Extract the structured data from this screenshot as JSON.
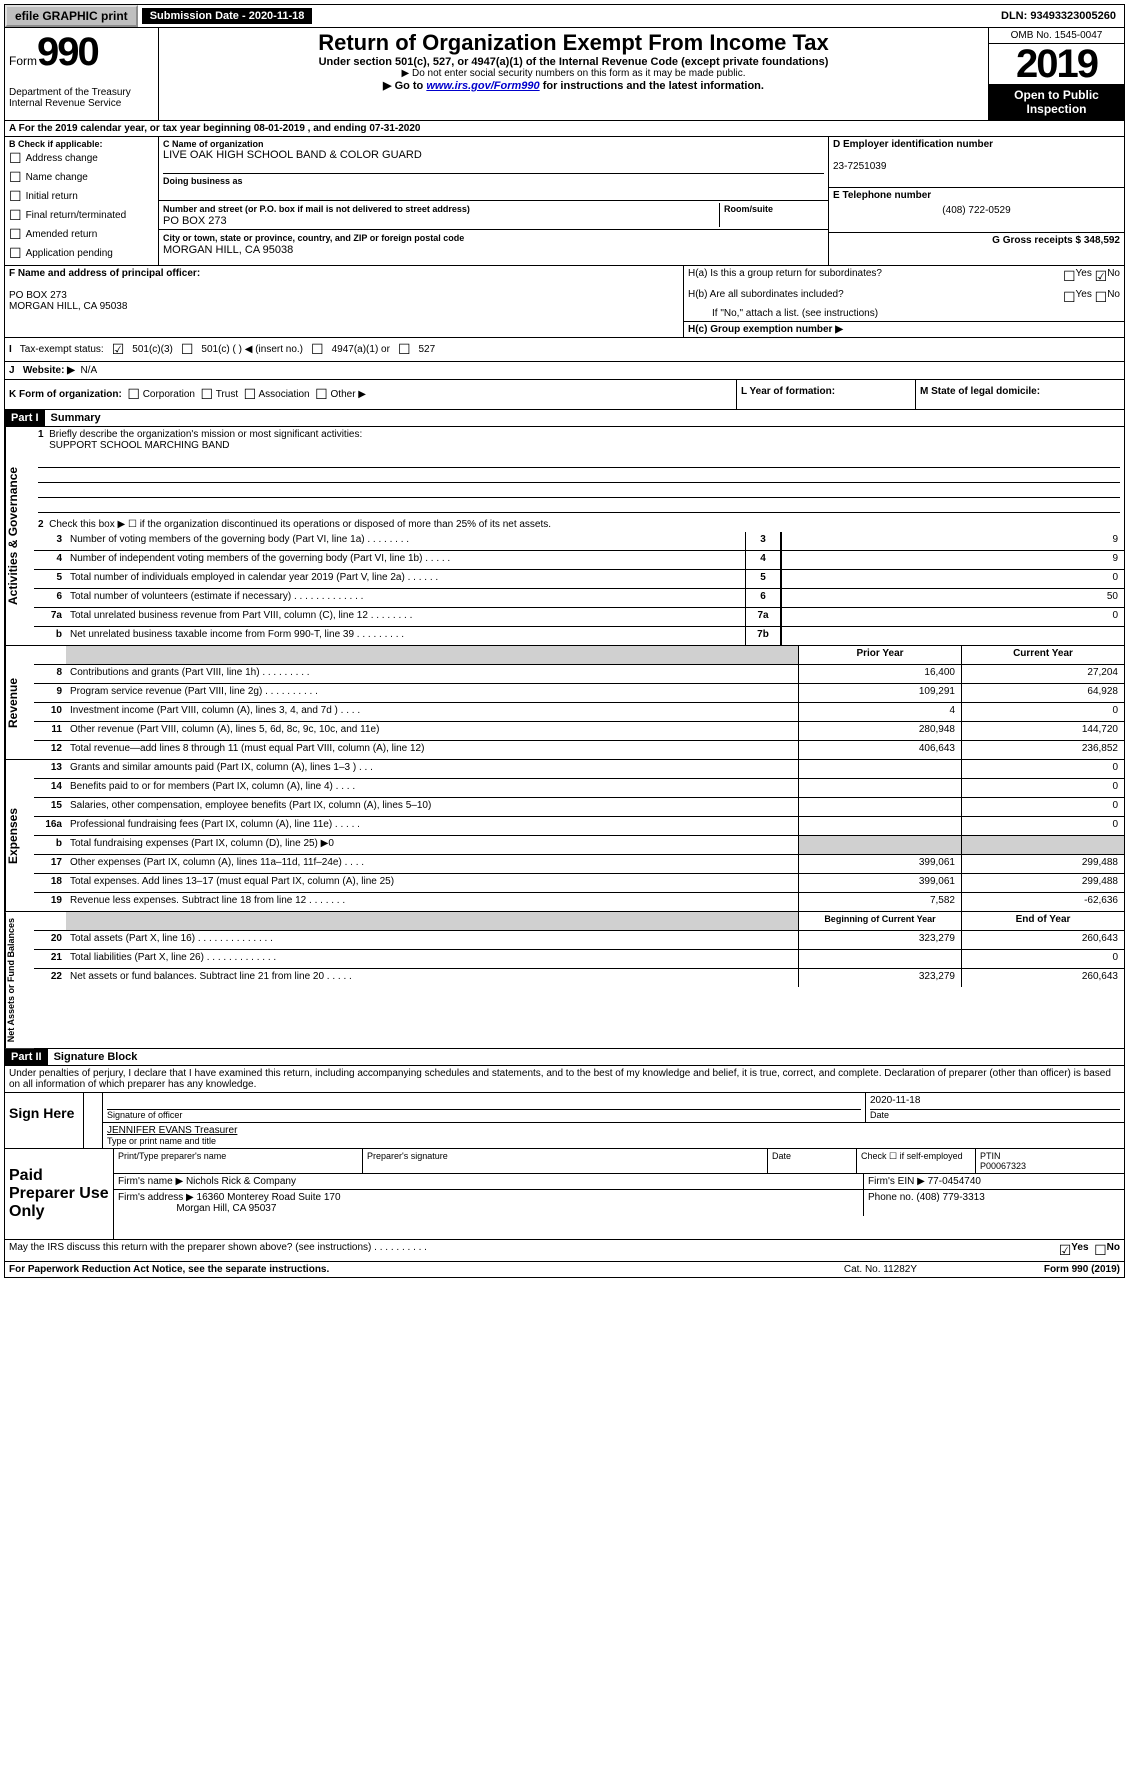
{
  "topbar": {
    "efile": "efile GRAPHIC print",
    "submission": "Submission Date - 2020-11-18",
    "dln": "DLN: 93493323005260"
  },
  "header": {
    "form_prefix": "Form",
    "form_num": "990",
    "title": "Return of Organization Exempt From Income Tax",
    "sub1": "Under section 501(c), 527, or 4947(a)(1) of the Internal Revenue Code (except private foundations)",
    "sub2": "▶ Do not enter social security numbers on this form as it may be made public.",
    "sub3_pre": "▶ Go to ",
    "sub3_link": "www.irs.gov/Form990",
    "sub3_post": " for instructions and the latest information.",
    "omb": "OMB No. 1545-0047",
    "year": "2019",
    "inspect": "Open to Public Inspection",
    "dept": "Department of the Treasury\nInternal Revenue Service"
  },
  "period": {
    "text": "A For the 2019 calendar year, or tax year beginning 08-01-2019    , and ending 07-31-2020"
  },
  "boxB": {
    "label": "B Check if applicable:",
    "items": [
      "Address change",
      "Name change",
      "Initial return",
      "Final return/terminated",
      "Amended return",
      "Application pending"
    ]
  },
  "boxC": {
    "name_label": "C Name of organization",
    "name": "LIVE OAK HIGH SCHOOL BAND & COLOR GUARD",
    "dba_label": "Doing business as",
    "street_label": "Number and street (or P.O. box if mail is not delivered to street address)",
    "room_label": "Room/suite",
    "street": "PO BOX 273",
    "city_label": "City or town, state or province, country, and ZIP or foreign postal code",
    "city": "MORGAN HILL, CA  95038"
  },
  "boxD": {
    "label": "D Employer identification number",
    "ein": "23-7251039"
  },
  "boxE": {
    "label": "E Telephone number",
    "phone": "(408) 722-0529"
  },
  "boxG": {
    "label": "G Gross receipts $ 348,592"
  },
  "boxF": {
    "label": "F Name and address of principal officer:",
    "line1": "PO BOX 273",
    "line2": "MORGAN HILL, CA  95038"
  },
  "boxH": {
    "ha": "H(a)  Is this a group return for subordinates?",
    "hb": "H(b)  Are all subordinates included?",
    "hb_note": "If \"No,\" attach a list. (see instructions)",
    "hc": "H(c)  Group exemption number ▶",
    "yes": "Yes",
    "no": "No"
  },
  "boxI": {
    "label": "Tax-exempt status:",
    "opt1": "501(c)(3)",
    "opt2": "501(c) (  ) ◀ (insert no.)",
    "opt3": "4947(a)(1) or",
    "opt4": "527"
  },
  "boxJ": {
    "label": "Website: ▶",
    "value": "N/A"
  },
  "boxK": {
    "label": "K Form of organization:",
    "opts": [
      "Corporation",
      "Trust",
      "Association",
      "Other ▶"
    ],
    "l_label": "L Year of formation:",
    "m_label": "M State of legal domicile:"
  },
  "part1": {
    "part": "Part I",
    "title": "Summary",
    "q1": "Briefly describe the organization's mission or most significant activities:",
    "mission": "SUPPORT SCHOOL MARCHING BAND",
    "q2": "Check this box ▶ ☐  if the organization discontinued its operations or disposed of more than 25% of its net assets.",
    "side_gov": "Activities & Governance",
    "side_rev": "Revenue",
    "side_exp": "Expenses",
    "side_net": "Net Assets or Fund Balances",
    "rows_gov": [
      {
        "n": "3",
        "d": "Number of voting members of the governing body (Part VI, line 1a)  .   .   .   .   .   .   .   .",
        "k": "3",
        "v": "9"
      },
      {
        "n": "4",
        "d": "Number of independent voting members of the governing body (Part VI, line 1b)   .   .   .   .   .",
        "k": "4",
        "v": "9"
      },
      {
        "n": "5",
        "d": "Total number of individuals employed in calendar year 2019 (Part V, line 2a)   .   .   .   .   .   .",
        "k": "5",
        "v": "0"
      },
      {
        "n": "6",
        "d": "Total number of volunteers (estimate if necessary)   .   .   .   .   .   .   .   .   .   .   .   .   .",
        "k": "6",
        "v": "50"
      },
      {
        "n": "7a",
        "d": "Total unrelated business revenue from Part VIII, column (C), line 12   .   .   .   .   .   .   .   .",
        "k": "7a",
        "v": "0"
      },
      {
        "n": "b",
        "d": "Net unrelated business taxable income from Form 990-T, line 39   .   .   .   .   .   .   .   .   .",
        "k": "7b",
        "v": ""
      }
    ],
    "col_prior": "Prior Year",
    "col_curr": "Current Year",
    "col_begin": "Beginning of Current Year",
    "col_end": "End of Year",
    "rows_rev": [
      {
        "n": "8",
        "d": "Contributions and grants (Part VIII, line 1h)   .   .   .   .   .   .   .   .   .",
        "p": "16,400",
        "c": "27,204"
      },
      {
        "n": "9",
        "d": "Program service revenue (Part VIII, line 2g)  .   .   .   .   .   .   .   .   .   .",
        "p": "109,291",
        "c": "64,928"
      },
      {
        "n": "10",
        "d": "Investment income (Part VIII, column (A), lines 3, 4, and 7d )   .   .   .   .",
        "p": "4",
        "c": "0"
      },
      {
        "n": "11",
        "d": "Other revenue (Part VIII, column (A), lines 5, 6d, 8c, 9c, 10c, and 11e)",
        "p": "280,948",
        "c": "144,720"
      },
      {
        "n": "12",
        "d": "Total revenue—add lines 8 through 11 (must equal Part VIII, column (A), line 12)",
        "p": "406,643",
        "c": "236,852"
      }
    ],
    "rows_exp": [
      {
        "n": "13",
        "d": "Grants and similar amounts paid (Part IX, column (A), lines 1–3 )   .   .   .",
        "p": "",
        "c": "0"
      },
      {
        "n": "14",
        "d": "Benefits paid to or for members (Part IX, column (A), line 4)   .   .   .   .",
        "p": "",
        "c": "0"
      },
      {
        "n": "15",
        "d": "Salaries, other compensation, employee benefits (Part IX, column (A), lines 5–10)",
        "p": "",
        "c": "0"
      },
      {
        "n": "16a",
        "d": "Professional fundraising fees (Part IX, column (A), line 11e)   .   .   .   .   .",
        "p": "",
        "c": "0"
      },
      {
        "n": "b",
        "d": "Total fundraising expenses (Part IX, column (D), line 25) ▶0",
        "p": "GRAY",
        "c": "GRAY"
      },
      {
        "n": "17",
        "d": "Other expenses (Part IX, column (A), lines 11a–11d, 11f–24e)   .   .   .   .",
        "p": "399,061",
        "c": "299,488"
      },
      {
        "n": "18",
        "d": "Total expenses. Add lines 13–17 (must equal Part IX, column (A), line 25)",
        "p": "399,061",
        "c": "299,488"
      },
      {
        "n": "19",
        "d": "Revenue less expenses. Subtract line 18 from line 12   .   .   .   .   .   .   .",
        "p": "7,582",
        "c": "-62,636"
      }
    ],
    "rows_net": [
      {
        "n": "20",
        "d": "Total assets (Part X, line 16)   .   .   .   .   .   .   .   .   .   .   .   .   .   .",
        "p": "323,279",
        "c": "260,643"
      },
      {
        "n": "21",
        "d": "Total liabilities (Part X, line 26)   .   .   .   .   .   .   .   .   .   .   .   .   .",
        "p": "",
        "c": "0"
      },
      {
        "n": "22",
        "d": "Net assets or fund balances. Subtract line 21 from line 20   .   .   .   .   .",
        "p": "323,279",
        "c": "260,643"
      }
    ]
  },
  "part2": {
    "part": "Part II",
    "title": "Signature Block",
    "declaration": "Under penalties of perjury, I declare that I have examined this return, including accompanying schedules and statements, and to the best of my knowledge and belief, it is true, correct, and complete. Declaration of preparer (other than officer) is based on all information of which preparer has any knowledge."
  },
  "sign": {
    "here": "Sign Here",
    "sig_officer": "Signature of officer",
    "date": "Date",
    "date_val": "2020-11-18",
    "name": "JENNIFER EVANS  Treasurer",
    "name_label": "Type or print name and title"
  },
  "paid": {
    "here": "Paid Preparer Use Only",
    "h1": "Print/Type preparer's name",
    "h2": "Preparer's signature",
    "h3": "Date",
    "h4": "Check ☐ if self-employed",
    "h5": "PTIN",
    "ptin": "P00067323",
    "firm_name_l": "Firm's name    ▶",
    "firm_name": "Nichols Rick & Company",
    "firm_ein_l": "Firm's EIN ▶",
    "firm_ein": "77-0454740",
    "firm_addr_l": "Firm's address ▶",
    "firm_addr": "16360 Monterey Road Suite 170",
    "firm_city": "Morgan Hill, CA  95037",
    "phone_l": "Phone no.",
    "phone": "(408) 779-3313"
  },
  "footer": {
    "q": "May the IRS discuss this return with the preparer shown above? (see instructions)   .   .   .   .   .   .   .   .   .   .",
    "yes": "Yes",
    "no": "No",
    "notice": "For Paperwork Reduction Act Notice, see the separate instructions.",
    "cat": "Cat. No. 11282Y",
    "form": "Form 990 (2019)"
  }
}
